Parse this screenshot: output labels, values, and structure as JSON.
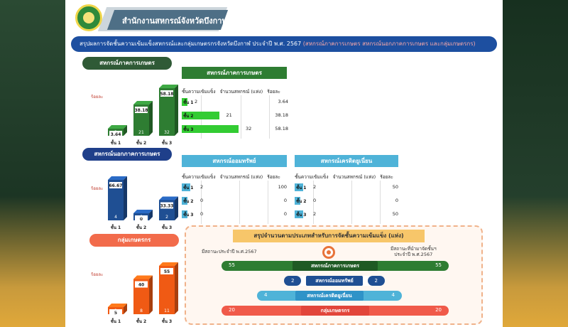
{
  "header": {
    "org_title": "สำนักงานสหกรณ์จังหวัดบึงกาฬ",
    "banner_main": "สรุปผลการจัดชั้นความเข้มแข็งสหกรณ์และกลุ่มเกษตรกรจังหวัดบึงกาฬ ประจำปี พ.ศ. 2567",
    "banner_sub": "(สหกรณ์ภาคการเกษตร สหกรณ์นอกภาคการเกษตร และกลุ่มเกษตรกร)"
  },
  "colors": {
    "agri": "#2e7d32",
    "nonagri": "#1f4f93",
    "farmer": "#f05a14",
    "savings": "#4fb3d8",
    "credit": "#4fb3d8",
    "banner": "#1d4fa0"
  },
  "agri_section": {
    "title": "สหกรณ์ภาคการเกษตร",
    "pct_label": "ร้อยละ",
    "chart_data": {
      "type": "bar",
      "categories": [
        "ชั้น 1",
        "ชั้น 2",
        "ชั้น 3"
      ],
      "values": [
        2,
        21,
        32
      ],
      "percents": [
        "3.64",
        "38.18",
        "58.18"
      ]
    }
  },
  "nonagri_section": {
    "title": "สหกรณ์นอกภาคการเกษตร",
    "pct_label": "ร้อยละ",
    "chart_data": {
      "type": "bar",
      "categories": [
        "ชั้น 1",
        "ชั้น 2",
        "ชั้น 3"
      ],
      "values": [
        4,
        0,
        2
      ],
      "percents": [
        "66.67",
        "0",
        "33.33"
      ]
    }
  },
  "farmer_section": {
    "title": "กลุ่มเกษตรกร",
    "pct_label": "ร้อยละ",
    "chart_data": {
      "type": "bar",
      "categories": [
        "ชั้น 1",
        "ชั้น 2",
        "ชั้น 3"
      ],
      "values": [
        1,
        8,
        11
      ],
      "percents": [
        "5",
        "40",
        "55"
      ]
    }
  },
  "table_agri": {
    "title": "สหกรณ์ภาคการเกษตร",
    "col_level": "ชั้นความเข้มแข็ง",
    "col_count": "จำนวนสหกรณ์ (แห่ง)",
    "col_pct": "ร้อยละ",
    "rows": [
      {
        "label": "ชั้น 1",
        "count": "2",
        "pct": "3.64",
        "value": 2
      },
      {
        "label": "ชั้น 2",
        "count": "21",
        "pct": "38.18",
        "value": 21
      },
      {
        "label": "ชั้น 3",
        "count": "32",
        "pct": "58.18",
        "value": 32
      }
    ]
  },
  "table_savings": {
    "title": "สหกรณ์ออมทรัพย์",
    "col_level": "ชั้นความเข้มแข็ง",
    "col_count": "จำนวนสหกรณ์ (แห่ง)",
    "col_pct": "ร้อยละ",
    "rows": [
      {
        "label": "ชั้น 1",
        "count": "2",
        "pct": "100",
        "value": 2
      },
      {
        "label": "ชั้น 2",
        "count": "0",
        "pct": "0",
        "value": 0
      },
      {
        "label": "ชั้น 3",
        "count": "0",
        "pct": "0",
        "value": 0
      }
    ]
  },
  "table_credit": {
    "title": "สหกรณ์เครดิตยูเนี่ยน",
    "col_level": "ชั้นความเข้มแข็ง",
    "col_count": "จำนวนสหกรณ์ (แห่ง)",
    "col_pct": "ร้อยละ",
    "rows": [
      {
        "label": "ชั้น 1",
        "count": "2",
        "pct": "50",
        "value": 2
      },
      {
        "label": "ชั้น 2",
        "count": "0",
        "pct": "0",
        "value": 0
      },
      {
        "label": "ชั้น 3",
        "count": "2",
        "pct": "50",
        "value": 2
      }
    ]
  },
  "summary": {
    "title": "สรุปจำนวนตามประเภทสำหรับการจัดชั้นความเข้มแข็ง (แห่ง)",
    "left_label": "มีสถานะประจำปี พ.ศ.2567",
    "right_label_line1": "มีสถานะที่นำมาจัดชั้นฯ",
    "right_label_line2": "ประจำปี พ.ศ.2567",
    "rows": [
      {
        "name": "สหกรณ์ภาคการเกษตร",
        "left": "55",
        "right": "55"
      },
      {
        "name": "สหกรณ์ออมทรัพย์",
        "left": "2",
        "right": "2"
      },
      {
        "name": "สหกรณ์เครดิตยูเนี่ยน",
        "left": "4",
        "right": "4"
      },
      {
        "name": "กลุ่มเกษตรกร",
        "left": "20",
        "right": "20"
      }
    ]
  }
}
